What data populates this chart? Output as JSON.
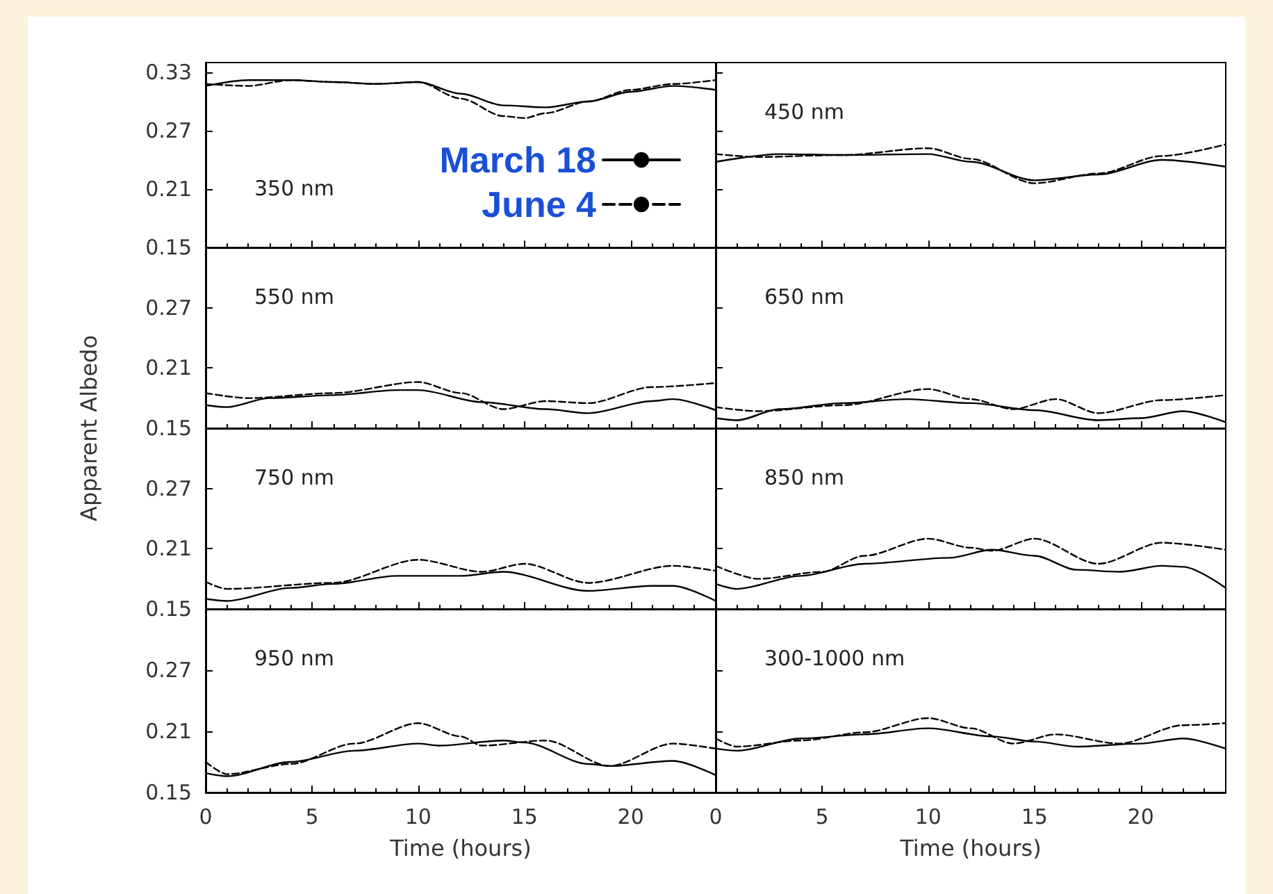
{
  "chart_data": [
    {
      "type": "line",
      "annotations": [
        "350 nm"
      ],
      "xlim": [
        0,
        24
      ],
      "xticks": [
        0,
        5,
        10,
        15,
        20
      ],
      "ylim": [
        0.15,
        0.34
      ],
      "yticks": [
        0.15,
        0.21,
        0.27,
        0.33
      ],
      "tick_labels": "y",
      "legend": "right",
      "series": [
        {
          "name": "March 18",
          "color": "#000000",
          "line_style": "solid",
          "x": [
            0,
            2,
            4,
            6,
            8,
            10,
            12,
            14,
            16,
            18,
            20,
            22,
            24
          ],
          "values": [
            0.316,
            0.322,
            0.322,
            0.32,
            0.318,
            0.32,
            0.308,
            0.296,
            0.294,
            0.3,
            0.31,
            0.316,
            0.312
          ]
        },
        {
          "name": "June 4",
          "color": "#000000",
          "line_style": "dashed",
          "x": [
            0,
            2,
            4,
            6,
            8,
            10,
            12,
            14,
            15,
            16,
            18,
            20,
            22,
            24
          ],
          "values": [
            0.318,
            0.316,
            0.322,
            0.32,
            0.318,
            0.32,
            0.303,
            0.285,
            0.283,
            0.288,
            0.3,
            0.312,
            0.318,
            0.322
          ]
        }
      ]
    },
    {
      "type": "line",
      "annotations": [
        "450 nm"
      ],
      "xlim": [
        0,
        24
      ],
      "xticks": [
        0,
        5,
        10,
        15,
        20
      ],
      "ylim": [
        0.15,
        0.34
      ],
      "yticks": [
        0.15,
        0.21,
        0.27,
        0.33
      ],
      "tick_labels": false,
      "series": [
        {
          "color": "#000000",
          "line_style": "solid",
          "x": [
            0,
            3,
            6,
            10,
            12,
            15,
            18,
            21,
            24
          ],
          "values": [
            0.238,
            0.246,
            0.245,
            0.246,
            0.238,
            0.219,
            0.225,
            0.24,
            0.233
          ]
        },
        {
          "color": "#000000",
          "line_style": "dashed",
          "x": [
            0,
            2,
            6,
            10,
            12,
            15,
            18,
            21,
            24
          ],
          "values": [
            0.246,
            0.243,
            0.245,
            0.252,
            0.241,
            0.216,
            0.226,
            0.244,
            0.256
          ]
        }
      ]
    },
    {
      "type": "line",
      "annotations": [
        "550 nm"
      ],
      "ylabel": "Apparent Albedo",
      "xlim": [
        0,
        24
      ],
      "xticks": [
        0,
        5,
        10,
        15,
        20
      ],
      "ylim": [
        0.15,
        0.33
      ],
      "yticks": [
        0.15,
        0.21,
        0.27
      ],
      "tick_labels": "y",
      "series": [
        {
          "color": "#000000",
          "line_style": "solid",
          "x": [
            0,
            1,
            3,
            6,
            9,
            10,
            13,
            16,
            18,
            21,
            22,
            24
          ],
          "values": [
            0.173,
            0.171,
            0.18,
            0.183,
            0.188,
            0.188,
            0.176,
            0.169,
            0.165,
            0.177,
            0.179,
            0.168
          ]
        },
        {
          "color": "#000000",
          "line_style": "dashed",
          "x": [
            0,
            2,
            6,
            10,
            12,
            14,
            16,
            18,
            21,
            24
          ],
          "values": [
            0.185,
            0.18,
            0.185,
            0.196,
            0.185,
            0.169,
            0.177,
            0.175,
            0.191,
            0.195
          ]
        }
      ]
    },
    {
      "type": "line",
      "annotations": [
        "650 nm"
      ],
      "xlim": [
        0,
        24
      ],
      "xticks": [
        0,
        5,
        10,
        15,
        20
      ],
      "ylim": [
        0.15,
        0.33
      ],
      "yticks": [
        0.15,
        0.21,
        0.27
      ],
      "tick_labels": false,
      "series": [
        {
          "color": "#000000",
          "line_style": "solid",
          "x": [
            0,
            1,
            3,
            6,
            9,
            12,
            15,
            18,
            20,
            22,
            24
          ],
          "values": [
            0.16,
            0.158,
            0.169,
            0.175,
            0.179,
            0.175,
            0.168,
            0.158,
            0.16,
            0.167,
            0.156
          ]
        },
        {
          "color": "#000000",
          "line_style": "dashed",
          "x": [
            0,
            2,
            6,
            10,
            12,
            14,
            16,
            18,
            21,
            24
          ],
          "values": [
            0.171,
            0.167,
            0.173,
            0.189,
            0.179,
            0.169,
            0.179,
            0.165,
            0.178,
            0.183
          ]
        }
      ]
    },
    {
      "type": "line",
      "annotations": [
        "750 nm"
      ],
      "xlim": [
        0,
        24
      ],
      "xticks": [
        0,
        5,
        10,
        15,
        20
      ],
      "ylim": [
        0.15,
        0.33
      ],
      "yticks": [
        0.15,
        0.21,
        0.27
      ],
      "tick_labels": "y",
      "series": [
        {
          "color": "#000000",
          "line_style": "solid",
          "x": [
            0,
            1,
            4,
            6,
            9,
            12,
            14,
            18,
            21,
            22,
            24
          ],
          "values": [
            0.16,
            0.158,
            0.171,
            0.175,
            0.183,
            0.183,
            0.187,
            0.168,
            0.173,
            0.173,
            0.158
          ]
        },
        {
          "color": "#000000",
          "line_style": "dashed",
          "x": [
            0,
            1,
            6,
            10,
            13,
            15,
            18,
            22,
            24
          ],
          "values": [
            0.177,
            0.17,
            0.176,
            0.199,
            0.187,
            0.195,
            0.176,
            0.193,
            0.188
          ]
        }
      ]
    },
    {
      "type": "line",
      "annotations": [
        "850 nm"
      ],
      "xlim": [
        0,
        24
      ],
      "xticks": [
        0,
        5,
        10,
        15,
        20
      ],
      "ylim": [
        0.15,
        0.33
      ],
      "yticks": [
        0.15,
        0.21,
        0.27
      ],
      "tick_labels": false,
      "series": [
        {
          "color": "#000000",
          "line_style": "solid",
          "x": [
            0,
            1,
            4,
            7,
            11,
            13,
            15,
            17,
            19,
            21,
            22,
            24
          ],
          "values": [
            0.175,
            0.17,
            0.183,
            0.195,
            0.201,
            0.209,
            0.203,
            0.189,
            0.187,
            0.193,
            0.192,
            0.171
          ]
        },
        {
          "color": "#000000",
          "line_style": "dashed",
          "x": [
            0,
            2,
            5,
            7,
            10,
            12,
            13,
            15,
            18,
            21,
            24
          ],
          "values": [
            0.193,
            0.18,
            0.187,
            0.203,
            0.22,
            0.211,
            0.208,
            0.22,
            0.195,
            0.216,
            0.209
          ]
        }
      ]
    },
    {
      "type": "line",
      "annotations": [
        "950 nm"
      ],
      "xlabel": "Time (hours)",
      "xlim": [
        0,
        24
      ],
      "xticks": [
        0,
        5,
        10,
        15,
        20
      ],
      "ylim": [
        0.15,
        0.33
      ],
      "yticks": [
        0.15,
        0.21,
        0.27
      ],
      "series": [
        {
          "color": "#000000",
          "line_style": "solid",
          "x": [
            0,
            1,
            4,
            7,
            10,
            11,
            14,
            15,
            18,
            19,
            22,
            24
          ],
          "values": [
            0.169,
            0.166,
            0.18,
            0.191,
            0.198,
            0.196,
            0.201,
            0.199,
            0.178,
            0.176,
            0.181,
            0.167
          ]
        },
        {
          "color": "#000000",
          "line_style": "dashed",
          "x": [
            0,
            1,
            4,
            7,
            10,
            12,
            13,
            16,
            19,
            22,
            24
          ],
          "values": [
            0.18,
            0.168,
            0.178,
            0.198,
            0.218,
            0.205,
            0.196,
            0.201,
            0.176,
            0.198,
            0.193
          ]
        }
      ]
    },
    {
      "type": "line",
      "annotations": [
        "300-1000 nm"
      ],
      "xlabel": "Time (hours)",
      "xlim": [
        0,
        24
      ],
      "xticks": [
        0,
        5,
        10,
        15,
        20
      ],
      "ylim": [
        0.15,
        0.33
      ],
      "yticks": [
        0.15,
        0.21,
        0.27
      ],
      "tick_labels": "x",
      "series": [
        {
          "color": "#000000",
          "line_style": "solid",
          "x": [
            0,
            1,
            4,
            7,
            10,
            13,
            15,
            17,
            20,
            22,
            24
          ],
          "values": [
            0.193,
            0.191,
            0.203,
            0.207,
            0.213,
            0.205,
            0.2,
            0.195,
            0.198,
            0.203,
            0.193
          ]
        },
        {
          "color": "#000000",
          "line_style": "dashed",
          "x": [
            0,
            1,
            4,
            7,
            10,
            12,
            14,
            16,
            19,
            22,
            24
          ],
          "values": [
            0.203,
            0.195,
            0.201,
            0.209,
            0.223,
            0.213,
            0.198,
            0.207,
            0.198,
            0.216,
            0.218
          ]
        }
      ]
    }
  ]
}
